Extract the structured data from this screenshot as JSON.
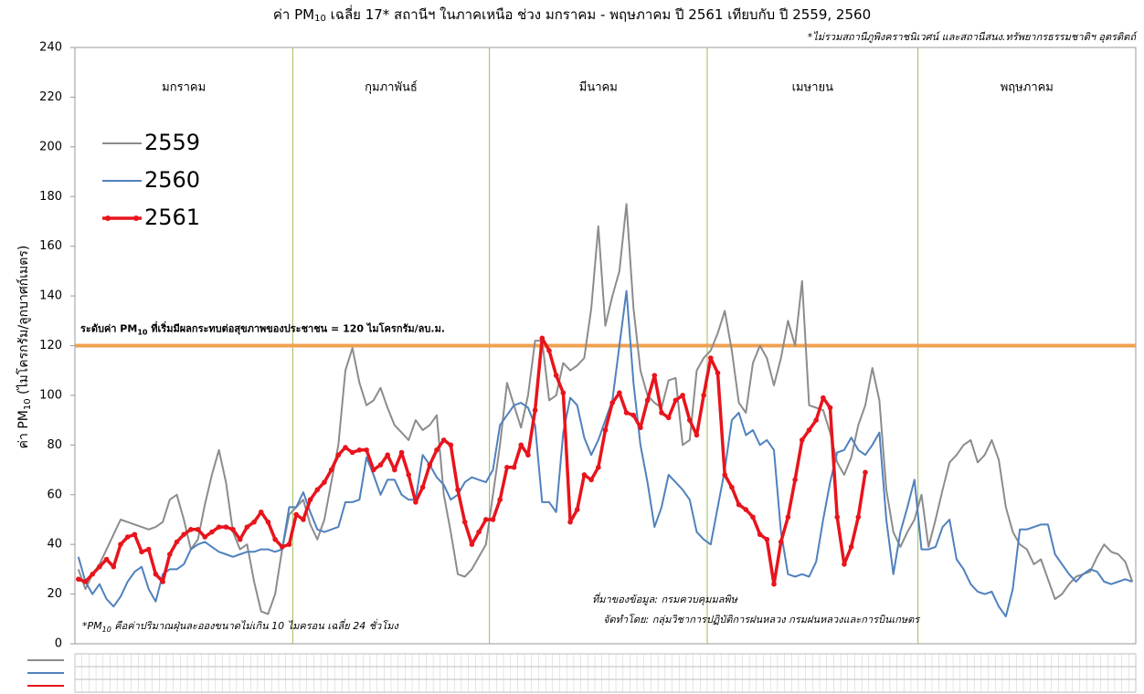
{
  "chart_data": {
    "type": "line",
    "title": {
      "before": "ค่า PM",
      "sub": "10",
      "after": " เฉลี่ย 17* สถานีฯ ในภาคเหนือ ช่วง มกราคม - พฤษภาคม ปี 2561 เทียบกับ ปี 2559, 2560"
    },
    "subtitle": "*ไม่รวมสถานีภูพิงคราชนิเวศน์ และสถานีสนง.ทรัพยากรธรรมชาติฯ อุตรดิตถ์",
    "y_label": {
      "before": "ค่า PM",
      "sub": "10",
      "after": " (ไมโครกรัม/ลูกบาศก์เมตร)"
    },
    "months": [
      "มกราคม",
      "กุมภาพันธ์",
      "มีนาคม",
      "เมษายน",
      "พฤษภาคม"
    ],
    "threshold": {
      "value": 120,
      "color": "#f0a050",
      "before": "ระดับค่า PM",
      "sub": "10",
      "after": " ที่เริ่มมีผลกระทบต่อสุขภาพของประชาชน = 120 ไมโครกรัม/ลบ.ม."
    },
    "footnote": {
      "before": "*PM",
      "sub": "10",
      "after": " คือค่าปริมาณฝุ่นละอองขนาดไม่เกิน 10 ไมครอน เฉลี่ย 24 ชั่วโมง"
    },
    "source": [
      "ที่มาของข้อมูล: กรมควบคุมมลพิษ",
      "จัดทำโดย: กลุ่มวิชาการปฏิบัติการฝนหลวง กรมฝนหลวงและการบินเกษตร"
    ],
    "ylim": [
      0,
      240
    ],
    "yticks": [
      0,
      20,
      40,
      60,
      80,
      100,
      120,
      140,
      160,
      180,
      200,
      220,
      240
    ],
    "categories": [
      null,
      null,
      null,
      null,
      null,
      null,
      null,
      null,
      null,
      null,
      null,
      null,
      null,
      null,
      null,
      null,
      null,
      null,
      null,
      null,
      null,
      null,
      null,
      null,
      null,
      null,
      null,
      null,
      null,
      null,
      null,
      null,
      null,
      null,
      null,
      null,
      null,
      null,
      null,
      null,
      null,
      null,
      null,
      null,
      null,
      null,
      null,
      null,
      null,
      null,
      null,
      null,
      null,
      null,
      null,
      null,
      null,
      null,
      null,
      null,
      null,
      null,
      null,
      null,
      null,
      null,
      null,
      null,
      null,
      null,
      null,
      null,
      null,
      null,
      null,
      null,
      null,
      null,
      null,
      null,
      null,
      null,
      null,
      null,
      null,
      null,
      null,
      null,
      null,
      null,
      null,
      null,
      null,
      null,
      null,
      null,
      null,
      null,
      null,
      null,
      null,
      null,
      null,
      null,
      null,
      null,
      null,
      null,
      null,
      null,
      null,
      null,
      null,
      null,
      null,
      null,
      null,
      null,
      null,
      null,
      null,
      null,
      null,
      null,
      null,
      null,
      null,
      null,
      null,
      null,
      null,
      null,
      null,
      null,
      null,
      null,
      null,
      null,
      null,
      null,
      null,
      null,
      null,
      null,
      null,
      null,
      null,
      null,
      null,
      null,
      null
    ],
    "series": [
      {
        "name": "2559",
        "color": "#8c8c8c",
        "markers": false,
        "values": [
          30,
          22,
          28,
          32,
          38,
          44,
          50,
          49,
          48,
          47,
          46,
          47,
          49,
          58,
          60,
          50,
          38,
          42,
          56,
          68,
          78,
          65,
          45,
          38,
          40,
          25,
          13,
          12,
          20,
          38,
          52,
          55,
          58,
          48,
          42,
          50,
          65,
          80,
          110,
          119,
          105,
          96,
          98,
          103,
          95,
          88,
          85,
          82,
          90,
          86,
          88,
          92,
          60,
          45,
          28,
          27,
          30,
          35,
          40,
          60,
          80,
          105,
          96,
          87,
          100,
          122,
          122,
          98,
          100,
          113,
          110,
          112,
          115,
          135,
          168,
          128,
          140,
          150,
          177,
          135,
          110,
          100,
          97,
          95,
          106,
          107,
          80,
          82,
          110,
          115,
          118,
          125,
          134,
          118,
          97,
          93,
          113,
          120,
          115,
          104,
          115,
          130,
          120,
          146,
          96,
          95,
          94,
          85,
          73,
          68,
          75,
          88,
          96,
          111,
          98,
          62,
          45,
          39,
          45,
          50,
          60,
          39,
          50,
          62,
          73,
          76,
          80,
          82,
          73,
          76,
          82,
          74,
          55,
          45,
          40,
          38,
          32,
          34,
          26,
          18,
          20,
          24,
          27,
          28,
          29,
          35,
          40,
          37,
          36,
          33,
          25
        ]
      },
      {
        "name": "2560",
        "color": "#4f81bd",
        "markers": false,
        "values": [
          35,
          25,
          20,
          24,
          18,
          15,
          19,
          25,
          29,
          31,
          22,
          17,
          28,
          30,
          30,
          32,
          38,
          40,
          41,
          39,
          37,
          36,
          35,
          36,
          37,
          37,
          38,
          38,
          37,
          38,
          55,
          55,
          61,
          53,
          46,
          45,
          46,
          47,
          57,
          57,
          58,
          75,
          68,
          60,
          66,
          66,
          60,
          58,
          58,
          76,
          72,
          67,
          64,
          58,
          60,
          65,
          67,
          66,
          65,
          70,
          88,
          92,
          96,
          97,
          95,
          88,
          57,
          57,
          53,
          85,
          99,
          96,
          83,
          76,
          82,
          90,
          98,
          120,
          142,
          105,
          80,
          65,
          47,
          55,
          68,
          65,
          62,
          58,
          45,
          42,
          40,
          55,
          70,
          90,
          93,
          84,
          86,
          80,
          82,
          78,
          45,
          28,
          27,
          28,
          27,
          33,
          50,
          65,
          77,
          78,
          83,
          78,
          76,
          80,
          85,
          50,
          28,
          45,
          55,
          66,
          38,
          38,
          39,
          47,
          50,
          34,
          30,
          24,
          21,
          20,
          21,
          15,
          11,
          22,
          46,
          46,
          47,
          48,
          48,
          36,
          32,
          28,
          25,
          28,
          30,
          29,
          25,
          24,
          25,
          26,
          25
        ]
      },
      {
        "name": "2561",
        "color": "#e8141c",
        "markers": true,
        "values": [
          26,
          25,
          28,
          31,
          34,
          31,
          40,
          43,
          44,
          37,
          38,
          28,
          25,
          36,
          41,
          44,
          46,
          46,
          43,
          45,
          47,
          47,
          46,
          42,
          47,
          49,
          53,
          49,
          42,
          39,
          40,
          52,
          50,
          58,
          62,
          65,
          70,
          76,
          79,
          77,
          78,
          78,
          70,
          72,
          76,
          70,
          77,
          68,
          57,
          63,
          72,
          78,
          82,
          80,
          62,
          49,
          40,
          45,
          50,
          50,
          58,
          71,
          71,
          80,
          76,
          94,
          123,
          118,
          108,
          101,
          49,
          54,
          68,
          66,
          71,
          86,
          97,
          101,
          93,
          92,
          87,
          98,
          108,
          93,
          91,
          98,
          100,
          90,
          84,
          100,
          115,
          109,
          68,
          63,
          56,
          54,
          51,
          44,
          42,
          24,
          41,
          51,
          66,
          82,
          86,
          90,
          99,
          95,
          51,
          32,
          39,
          51,
          69,
          null,
          null,
          null,
          null,
          null,
          null,
          null,
          null,
          null,
          null,
          null,
          null,
          null,
          null,
          null,
          null,
          null,
          null,
          null,
          null,
          null,
          null,
          null,
          null,
          null,
          null,
          null,
          null,
          null,
          null,
          null,
          null,
          null,
          null,
          null,
          null,
          null,
          null
        ]
      }
    ]
  }
}
